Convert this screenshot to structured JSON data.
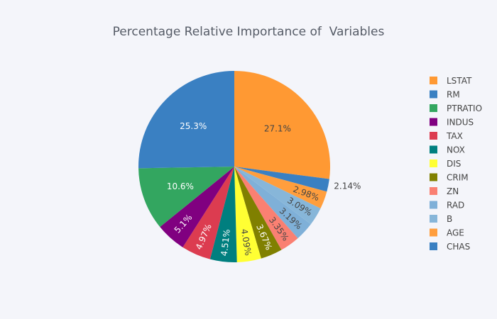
{
  "chart_data": {
    "type": "pie",
    "title": "Percentage Relative Importance of  Variables",
    "legend_position": "right",
    "direction": "clockwise",
    "start": "top",
    "categories": [
      "LSTAT",
      "RM",
      "PTRATIO",
      "INDUS",
      "TAX",
      "NOX",
      "DIS",
      "CRIM",
      "ZN",
      "RAD",
      "B",
      "AGE",
      "CHAS"
    ],
    "slices": [
      {
        "label": "LSTAT",
        "value": 27.1,
        "text": "27.1%",
        "color": "#ff9933"
      },
      {
        "label": "CHAS",
        "value": 2.14,
        "text": "2.14%",
        "color": "#3a80c2"
      },
      {
        "label": "AGE",
        "value": 2.98,
        "text": "2.98%",
        "color": "#ff9e3d"
      },
      {
        "label": "B",
        "value": 3.09,
        "text": "3.09%",
        "color": "#87b6d9"
      },
      {
        "label": "RAD",
        "value": 3.19,
        "text": "3.19%",
        "color": "#7fb0d8"
      },
      {
        "label": "ZN",
        "value": 3.35,
        "text": "3.35%",
        "color": "#fa8072"
      },
      {
        "label": "CRIM",
        "value": 3.67,
        "text": "3.67%",
        "color": "#808000"
      },
      {
        "label": "DIS",
        "value": 4.09,
        "text": "4.09%",
        "color": "#ffff33"
      },
      {
        "label": "NOX",
        "value": 4.51,
        "text": "4.51%",
        "color": "#007f7f"
      },
      {
        "label": "TAX",
        "value": 4.97,
        "text": "4.97%",
        "color": "#dc3c50"
      },
      {
        "label": "INDUS",
        "value": 5.1,
        "text": "5.1%",
        "color": "#800080"
      },
      {
        "label": "PTRATIO",
        "value": 10.6,
        "text": "10.6%",
        "color": "#33a660"
      },
      {
        "label": "RM",
        "value": 25.3,
        "text": "25.3%",
        "color": "#3a80c2"
      }
    ]
  }
}
